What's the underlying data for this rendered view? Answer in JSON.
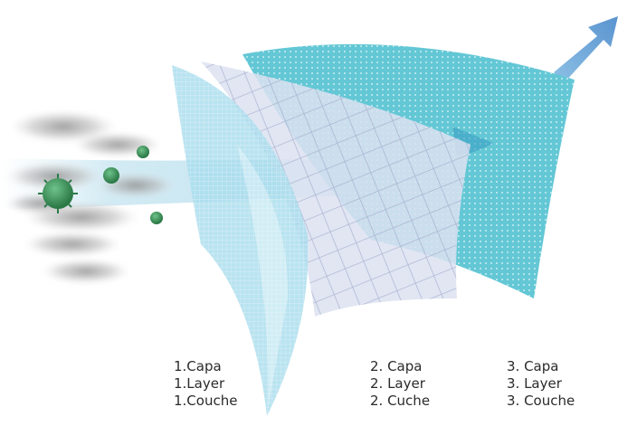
{
  "colors": {
    "layer_1": "#9fd8ea",
    "layer_2": "#d4dcef",
    "layer_3": "#5ec9d6",
    "arrow": "#6a9fd3",
    "virus": "#3a8f58",
    "smoke": "#9a9a9a"
  },
  "layers": [
    {
      "lines": [
        "1.Capa",
        "1.Layer",
        "1.Couche"
      ]
    },
    {
      "lines": [
        "2. Capa",
        "2. Layer",
        "2. Cuche"
      ]
    },
    {
      "lines": [
        "3. Capa",
        "3. Layer",
        "3. Couche"
      ]
    }
  ]
}
